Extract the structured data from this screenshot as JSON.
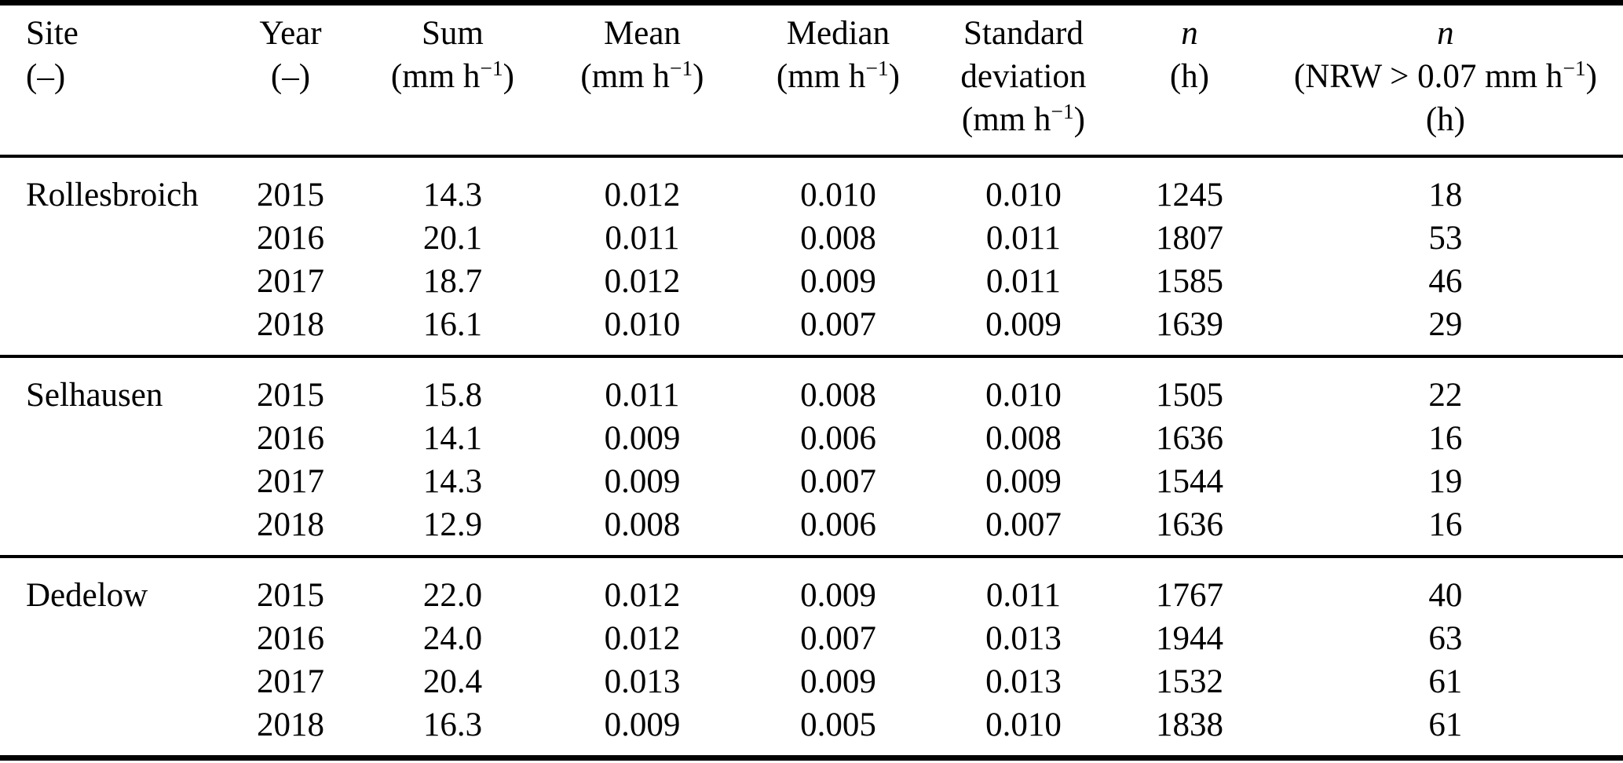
{
  "table": {
    "header": {
      "columns": [
        {
          "id": "site",
          "lines": [
            "Site",
            "(–)"
          ],
          "italic_label": false
        },
        {
          "id": "year",
          "lines": [
            "Year",
            "(–)"
          ],
          "italic_label": false
        },
        {
          "id": "sum",
          "lines": [
            "Sum",
            "(mm h⁻¹)"
          ],
          "italic_label": false
        },
        {
          "id": "mean",
          "lines": [
            "Mean",
            "(mm h⁻¹)"
          ],
          "italic_label": false
        },
        {
          "id": "median",
          "lines": [
            "Median",
            "(mm h⁻¹)"
          ],
          "italic_label": false
        },
        {
          "id": "standard-deviation",
          "lines": [
            "Standard",
            "deviation",
            "(mm h⁻¹)"
          ],
          "italic_label": false
        },
        {
          "id": "n-hours",
          "lines": [
            "n",
            "(h)"
          ],
          "italic_label": true
        },
        {
          "id": "n-nrw",
          "lines": [
            "n",
            "(NRW > 0.07 mm h⁻¹)",
            "(h)"
          ],
          "italic_label": true
        }
      ]
    },
    "groups": [
      {
        "site": "Rollesbroich",
        "rows": [
          {
            "year": "2015",
            "sum": "14.3",
            "mean": "0.012",
            "median": "0.010",
            "std": "0.010",
            "n": "1245",
            "n_nrw": "18"
          },
          {
            "year": "2016",
            "sum": "20.1",
            "mean": "0.011",
            "median": "0.008",
            "std": "0.011",
            "n": "1807",
            "n_nrw": "53"
          },
          {
            "year": "2017",
            "sum": "18.7",
            "mean": "0.012",
            "median": "0.009",
            "std": "0.011",
            "n": "1585",
            "n_nrw": "46"
          },
          {
            "year": "2018",
            "sum": "16.1",
            "mean": "0.010",
            "median": "0.007",
            "std": "0.009",
            "n": "1639",
            "n_nrw": "29"
          }
        ]
      },
      {
        "site": "Selhausen",
        "rows": [
          {
            "year": "2015",
            "sum": "15.8",
            "mean": "0.011",
            "median": "0.008",
            "std": "0.010",
            "n": "1505",
            "n_nrw": "22"
          },
          {
            "year": "2016",
            "sum": "14.1",
            "mean": "0.009",
            "median": "0.006",
            "std": "0.008",
            "n": "1636",
            "n_nrw": "16"
          },
          {
            "year": "2017",
            "sum": "14.3",
            "mean": "0.009",
            "median": "0.007",
            "std": "0.009",
            "n": "1544",
            "n_nrw": "19"
          },
          {
            "year": "2018",
            "sum": "12.9",
            "mean": "0.008",
            "median": "0.006",
            "std": "0.007",
            "n": "1636",
            "n_nrw": "16"
          }
        ]
      },
      {
        "site": "Dedelow",
        "rows": [
          {
            "year": "2015",
            "sum": "22.0",
            "mean": "0.012",
            "median": "0.009",
            "std": "0.011",
            "n": "1767",
            "n_nrw": "40"
          },
          {
            "year": "2016",
            "sum": "24.0",
            "mean": "0.012",
            "median": "0.007",
            "std": "0.013",
            "n": "1944",
            "n_nrw": "63"
          },
          {
            "year": "2017",
            "sum": "20.4",
            "mean": "0.013",
            "median": "0.009",
            "std": "0.013",
            "n": "1532",
            "n_nrw": "61"
          },
          {
            "year": "2018",
            "sum": "16.3",
            "mean": "0.009",
            "median": "0.005",
            "std": "0.010",
            "n": "1838",
            "n_nrw": "61"
          }
        ]
      }
    ]
  }
}
